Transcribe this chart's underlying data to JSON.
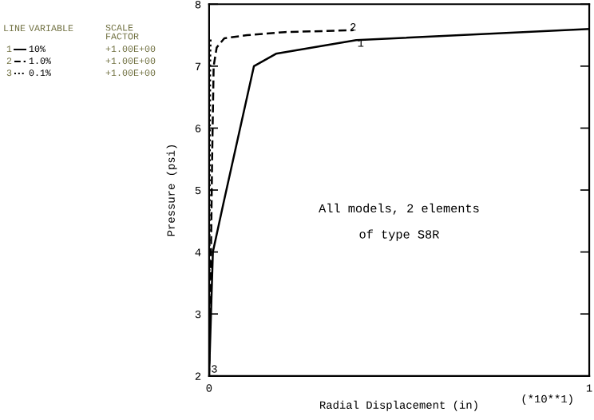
{
  "chart_data": {
    "type": "line",
    "xlabel": "Radial Displacement (in)",
    "ylabel": "Pressure (psi)",
    "xlim": [
      0,
      1
    ],
    "xticks": [
      0,
      1
    ],
    "ylim": [
      2,
      8
    ],
    "yticks": [
      2,
      3,
      4,
      5,
      6,
      7,
      8
    ],
    "grid": false,
    "legend": "top left",
    "series": [
      {
        "name": "10%",
        "color": "#000000",
        "line_style": "solid",
        "x": [
          0,
          0.005,
          0.01,
          0.04,
          0.118,
          0.176,
          0.387,
          1.0
        ],
        "values": [
          2,
          3,
          4,
          4.85,
          7.0,
          7.2,
          7.42,
          7.6
        ]
      },
      {
        "name": "1.0%",
        "color": "#000000",
        "line_style": "dashed",
        "x": [
          0,
          0.004,
          0.008,
          0.012,
          0.02,
          0.04,
          0.1,
          0.2,
          0.38
        ],
        "values": [
          2,
          3.5,
          5.5,
          7.0,
          7.3,
          7.45,
          7.5,
          7.55,
          7.58
        ]
      },
      {
        "name": "0.1%",
        "color": "#000000",
        "line_style": "dotted",
        "x": [
          0,
          0.001,
          0.002,
          0.003,
          0.004
        ],
        "values": [
          2,
          4,
          6,
          7.2,
          7.45
        ]
      }
    ],
    "annotations": [
      "LINE",
      "VARIABLE",
      "SCALE\nFACTOR",
      "+1.00E+00",
      "+1.00E+00",
      "+1.00E+00",
      {
        "text": "1",
        "x": 0.39,
        "y": 7.36
      },
      {
        "text": "2",
        "x": 0.37,
        "y": 7.62
      },
      {
        "text": "3",
        "x": 0.005,
        "y": 2.1
      },
      "All models, 2 elements",
      "of type S8R",
      "(*10**1)"
    ]
  }
}
